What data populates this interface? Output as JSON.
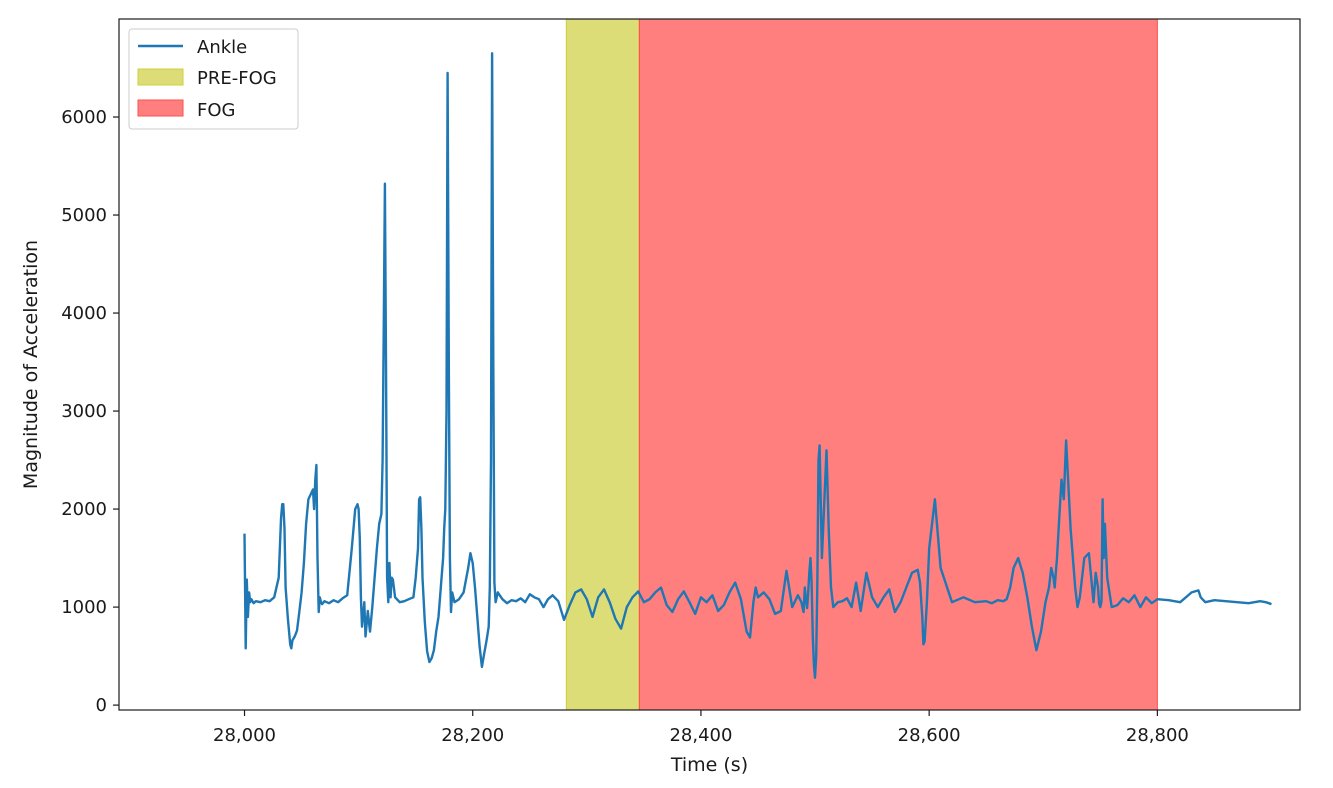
{
  "chart_data": {
    "type": "line",
    "title": "",
    "xlabel": "Time (s)",
    "ylabel": "Magnitude of Acceleration",
    "xlim": [
      27890,
      28925
    ],
    "ylim": [
      -50,
      7000
    ],
    "x_ticks": [
      28000,
      28200,
      28400,
      28600,
      28800
    ],
    "x_tick_labels": [
      "28,000",
      "28,200",
      "28,400",
      "28,600",
      "28,800"
    ],
    "y_ticks": [
      0,
      1000,
      2000,
      3000,
      4000,
      5000,
      6000
    ],
    "y_tick_labels": [
      "0",
      "1000",
      "2000",
      "3000",
      "4000",
      "5000",
      "6000"
    ],
    "grid": false,
    "legend_position": "top-left",
    "colors": {
      "line": "#1f77b4",
      "pre_fog": "#cfcf3d",
      "fog": "#ff4d4d"
    },
    "spans": [
      {
        "name": "PRE-FOG",
        "x0": 28282,
        "x1": 28346
      },
      {
        "name": "FOG",
        "x0": 28346,
        "x1": 28800
      }
    ],
    "series": [
      {
        "name": "Ankle",
        "x": [
          28000,
          28001,
          28002,
          28003,
          28004,
          28005,
          28006,
          28008,
          28010,
          28014,
          28018,
          28022,
          28026,
          28030,
          28032,
          28033,
          28034,
          28035,
          28036,
          28038,
          28040,
          28041,
          28042,
          28044,
          28046,
          28048,
          28050,
          28052,
          28054,
          28056,
          28058,
          28060,
          28061,
          28062,
          28063,
          28064,
          28065,
          28066,
          28067,
          28068,
          28070,
          28074,
          28078,
          28082,
          28086,
          28090,
          28094,
          28097,
          28099,
          28100,
          28101,
          28102,
          28103,
          28105,
          28106,
          28107,
          28108,
          28110,
          28112,
          28114,
          28116,
          28118,
          28120,
          28121,
          28122,
          28123,
          28124,
          28125,
          28126,
          28127,
          28128,
          28129,
          28130,
          28132,
          28136,
          28140,
          28144,
          28148,
          28150,
          28152,
          28153,
          28154,
          28155,
          28156,
          28158,
          28160,
          28162,
          28164,
          28166,
          28168,
          28170,
          28172,
          28174,
          28175,
          28176,
          28177,
          28178,
          28179,
          28180,
          28181,
          28182,
          28184,
          28188,
          28192,
          28196,
          28198,
          28200,
          28202,
          28204,
          28206,
          28208,
          28210,
          28212,
          28214,
          28215,
          28216,
          28217,
          28218,
          28219,
          28220,
          28222,
          28226,
          28230,
          28234,
          28238,
          28242,
          28246,
          28250,
          28254,
          28258,
          28262,
          28266,
          28270,
          28275,
          28280,
          28285,
          28290,
          28295,
          28300,
          28305,
          28310,
          28315,
          28320,
          28325,
          28330,
          28335,
          28340,
          28345,
          28350,
          28355,
          28360,
          28365,
          28370,
          28375,
          28380,
          28385,
          28390,
          28395,
          28400,
          28405,
          28410,
          28412,
          28415,
          28420,
          28425,
          28430,
          28435,
          28440,
          28443,
          28446,
          28448,
          28450,
          28455,
          28460,
          28465,
          28470,
          28475,
          28480,
          28485,
          28488,
          28490,
          28491,
          28492,
          28493,
          28494,
          28495,
          28496,
          28497,
          28498,
          28499,
          28500,
          28501,
          28502,
          28503,
          28504,
          28506,
          28510,
          28512,
          28514,
          28516,
          28520,
          28524,
          28528,
          28532,
          28536,
          28540,
          28545,
          28550,
          28555,
          28560,
          28565,
          28570,
          28575,
          28580,
          28585,
          28590,
          28592,
          28594,
          28595,
          28596,
          28598,
          28600,
          28605,
          28610,
          28620,
          28630,
          28640,
          28650,
          28655,
          28660,
          28665,
          28668,
          28671,
          28674,
          28678,
          28682,
          28686,
          28690,
          28694,
          28698,
          28702,
          28705,
          28707,
          28709,
          28710,
          28711,
          28712,
          28714,
          28716,
          28718,
          28720,
          28724,
          28728,
          28730,
          28732,
          28736,
          28740,
          28744,
          28746,
          28748,
          28749,
          28750,
          28751,
          28752,
          28753,
          28754,
          28756,
          28760,
          28765,
          28770,
          28775,
          28780,
          28785,
          28790,
          28795,
          28800,
          28810,
          28820,
          28830,
          28836,
          28838,
          28842,
          28850,
          28860,
          28870,
          28880,
          28890,
          28895,
          28900
        ],
        "values": [
          1750,
          580,
          1280,
          900,
          1150,
          1050,
          1080,
          1040,
          1060,
          1050,
          1070,
          1060,
          1100,
          1300,
          1900,
          2050,
          2050,
          1800,
          1200,
          880,
          620,
          580,
          660,
          700,
          760,
          950,
          1150,
          1450,
          1850,
          2100,
          2150,
          2200,
          2000,
          2300,
          2450,
          1500,
          950,
          1100,
          1050,
          1030,
          1060,
          1040,
          1070,
          1050,
          1090,
          1120,
          1600,
          2000,
          2050,
          2000,
          1700,
          1100,
          800,
          1050,
          700,
          820,
          960,
          750,
          1000,
          1300,
          1600,
          1850,
          1950,
          2500,
          3800,
          5320,
          3500,
          1300,
          1050,
          1450,
          1100,
          1300,
          1280,
          1100,
          1050,
          1060,
          1080,
          1100,
          1300,
          1600,
          2100,
          2120,
          1800,
          1300,
          850,
          550,
          440,
          480,
          560,
          750,
          900,
          1200,
          1500,
          1800,
          2000,
          3000,
          6450,
          3500,
          1500,
          950,
          1150,
          1050,
          1080,
          1150,
          1400,
          1550,
          1450,
          1200,
          900,
          600,
          390,
          520,
          650,
          800,
          1200,
          2500,
          6650,
          3500,
          1250,
          1050,
          1150,
          1080,
          1040,
          1070,
          1060,
          1090,
          1050,
          1130,
          1100,
          1080,
          1000,
          1080,
          1120,
          1060,
          870,
          1020,
          1150,
          1180,
          1080,
          900,
          1100,
          1180,
          1050,
          880,
          780,
          1000,
          1100,
          1160,
          1050,
          1080,
          1150,
          1200,
          1020,
          950,
          1080,
          1160,
          1050,
          930,
          1100,
          1050,
          1120,
          1060,
          960,
          1020,
          1150,
          1250,
          1080,
          750,
          690,
          1050,
          1200,
          1100,
          1150,
          1080,
          930,
          960,
          1370,
          1000,
          1120,
          1050,
          950,
          1200,
          1080,
          990,
          1150,
          1350,
          1500,
          1250,
          700,
          420,
          280,
          500,
          1200,
          2500,
          2650,
          1500,
          2600,
          1800,
          1200,
          1000,
          1050,
          1060,
          1090,
          1000,
          1250,
          960,
          1350,
          1100,
          1000,
          1100,
          1180,
          950,
          1050,
          1200,
          1350,
          1380,
          1250,
          900,
          620,
          650,
          1050,
          1600,
          2100,
          1400,
          1050,
          1100,
          1050,
          1060,
          1040,
          1070,
          1060,
          1080,
          1200,
          1400,
          1500,
          1350,
          1100,
          800,
          560,
          750,
          1050,
          1200,
          1400,
          1300,
          1200,
          1350,
          1500,
          1900,
          2300,
          2100,
          2700,
          1800,
          1200,
          1000,
          1100,
          1500,
          1550,
          1050,
          1350,
          1200,
          1030,
          1000,
          1060,
          2100,
          1500,
          1850,
          1300,
          1000,
          1020,
          1090,
          1050,
          1120,
          1000,
          1100,
          1040,
          1080,
          1070,
          1050,
          1150,
          1170,
          1100,
          1050,
          1070,
          1060,
          1050,
          1040,
          1060,
          1050,
          1030
        ]
      }
    ]
  },
  "legend": {
    "items": [
      {
        "label": "Ankle",
        "kind": "line"
      },
      {
        "label": "PRE-FOG",
        "kind": "span"
      },
      {
        "label": "FOG",
        "kind": "span"
      }
    ]
  }
}
